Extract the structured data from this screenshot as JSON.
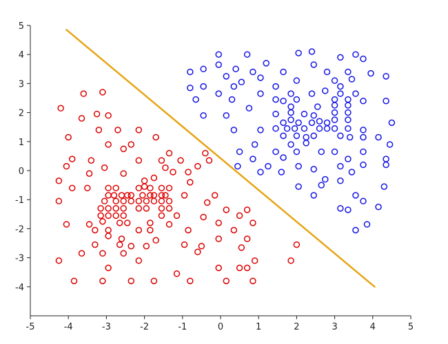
{
  "chart_data": {
    "type": "scatter",
    "xlim": [
      -5,
      5
    ],
    "ylim": [
      -5,
      5
    ],
    "x_ticks": [
      -5,
      -4,
      -3,
      -2,
      -1,
      0,
      1,
      2,
      3,
      4,
      5
    ],
    "y_ticks": [
      -4,
      -3,
      -2,
      -1,
      0,
      1,
      2,
      3,
      4,
      5
    ],
    "grid": false,
    "legend": "none",
    "series": [
      {
        "color": "#dd0000",
        "marker": "open-circle",
        "points": [
          [
            -3.6,
            2.65
          ],
          [
            -3.1,
            2.7
          ],
          [
            -4.2,
            2.15
          ],
          [
            -3.25,
            1.95
          ],
          [
            -2.95,
            1.9
          ],
          [
            -3.65,
            1.8
          ],
          [
            -2.7,
            1.4
          ],
          [
            -3.2,
            1.4
          ],
          [
            -2.15,
            1.4
          ],
          [
            -4.0,
            1.15
          ],
          [
            -2.35,
            0.9
          ],
          [
            -2.95,
            0.9
          ],
          [
            -1.7,
            1.15
          ],
          [
            -2.55,
            0.75
          ],
          [
            -1.35,
            0.6
          ],
          [
            -1.55,
            0.35
          ],
          [
            -3.9,
            0.4
          ],
          [
            -3.4,
            0.35
          ],
          [
            -2.15,
            0.35
          ],
          [
            -1.05,
            0.35
          ],
          [
            -4.05,
            0.15
          ],
          [
            -3.05,
            0.1
          ],
          [
            -1.45,
            0.1
          ],
          [
            -0.6,
            0.15
          ],
          [
            -0.4,
            0.6
          ],
          [
            -0.3,
            0.35
          ],
          [
            -3.45,
            -0.1
          ],
          [
            -2.55,
            -0.1
          ],
          [
            -1.25,
            -0.05
          ],
          [
            -0.85,
            -0.05
          ],
          [
            -1.75,
            -0.25
          ],
          [
            -2.0,
            -0.35
          ],
          [
            -0.8,
            -0.4
          ],
          [
            -4.25,
            -0.35
          ],
          [
            -3.9,
            -0.6
          ],
          [
            -3.5,
            -0.6
          ],
          [
            -2.95,
            -0.6
          ],
          [
            -2.75,
            -0.6
          ],
          [
            -2.15,
            -0.6
          ],
          [
            -2.0,
            -0.55
          ],
          [
            -1.85,
            -0.6
          ],
          [
            -1.55,
            -0.6
          ],
          [
            -1.35,
            -0.6
          ],
          [
            -2.95,
            -0.85
          ],
          [
            -2.8,
            -0.85
          ],
          [
            -2.6,
            -0.85
          ],
          [
            -2.45,
            -0.85
          ],
          [
            -2.35,
            -0.85
          ],
          [
            -2.05,
            -0.85
          ],
          [
            -1.85,
            -0.85
          ],
          [
            -1.75,
            -0.85
          ],
          [
            -1.55,
            -0.85
          ],
          [
            -1.45,
            -0.85
          ],
          [
            -0.95,
            -0.85
          ],
          [
            -0.15,
            -0.85
          ],
          [
            -3.05,
            -1.05
          ],
          [
            -2.75,
            -1.05
          ],
          [
            -2.55,
            -1.05
          ],
          [
            -2.35,
            -1.05
          ],
          [
            -2.15,
            -1.05
          ],
          [
            -1.95,
            -1.05
          ],
          [
            -1.75,
            -1.05
          ],
          [
            -1.55,
            -1.05
          ],
          [
            -1.35,
            -1.05
          ],
          [
            -4.25,
            -1.05
          ],
          [
            -3.15,
            -1.3
          ],
          [
            -2.95,
            -1.3
          ],
          [
            -2.75,
            -1.3
          ],
          [
            -2.55,
            -1.3
          ],
          [
            -2.15,
            -1.3
          ],
          [
            -1.95,
            -1.3
          ],
          [
            -1.55,
            -1.3
          ],
          [
            -1.35,
            -1.3
          ],
          [
            -0.35,
            -1.1
          ],
          [
            0.15,
            -1.35
          ],
          [
            0.7,
            -1.35
          ],
          [
            -3.15,
            -1.55
          ],
          [
            -2.95,
            -1.55
          ],
          [
            -2.75,
            -1.55
          ],
          [
            -2.55,
            -1.55
          ],
          [
            -1.55,
            -1.55
          ],
          [
            -1.15,
            -1.55
          ],
          [
            -0.45,
            -1.6
          ],
          [
            0.5,
            -1.55
          ],
          [
            -3.1,
            -1.75
          ],
          [
            -2.65,
            -1.8
          ],
          [
            -2.45,
            -1.8
          ],
          [
            -1.85,
            -1.8
          ],
          [
            -1.35,
            -1.85
          ],
          [
            -3.45,
            -1.85
          ],
          [
            -4.05,
            -1.85
          ],
          [
            -0.05,
            -1.8
          ],
          [
            0.85,
            -1.8
          ],
          [
            -3.3,
            -2.05
          ],
          [
            -2.95,
            -2.05
          ],
          [
            -2.15,
            -2.05
          ],
          [
            -1.85,
            -2.05
          ],
          [
            -0.85,
            -2.05
          ],
          [
            0.35,
            -2.05
          ],
          [
            -2.95,
            -2.25
          ],
          [
            -2.6,
            -2.35
          ],
          [
            -1.7,
            -2.4
          ],
          [
            -0.05,
            -2.35
          ],
          [
            0.7,
            -2.35
          ],
          [
            -3.3,
            -2.55
          ],
          [
            -2.65,
            -2.55
          ],
          [
            -2.35,
            -2.6
          ],
          [
            -1.95,
            -2.6
          ],
          [
            -0.95,
            -2.55
          ],
          [
            -0.5,
            -2.6
          ],
          [
            0.55,
            -2.65
          ],
          [
            2.0,
            -2.55
          ],
          [
            -3.65,
            -2.85
          ],
          [
            -3.1,
            -2.85
          ],
          [
            -2.55,
            -2.85
          ],
          [
            -0.6,
            -2.8
          ],
          [
            -4.25,
            -3.1
          ],
          [
            -2.15,
            -3.1
          ],
          [
            0.9,
            -3.1
          ],
          [
            1.85,
            -3.1
          ],
          [
            -2.95,
            -3.35
          ],
          [
            -0.05,
            -3.35
          ],
          [
            0.5,
            -3.35
          ],
          [
            0.7,
            -3.35
          ],
          [
            -1.15,
            -3.55
          ],
          [
            -3.85,
            -3.8
          ],
          [
            -3.1,
            -3.8
          ],
          [
            -2.35,
            -3.8
          ],
          [
            -1.75,
            -3.8
          ],
          [
            -0.8,
            -3.8
          ],
          [
            0.15,
            -3.8
          ],
          [
            0.85,
            -3.8
          ]
        ]
      },
      {
        "color": "#1414e6",
        "marker": "open-circle",
        "points": [
          [
            -0.05,
            4.0
          ],
          [
            0.7,
            4.0
          ],
          [
            2.05,
            4.05
          ],
          [
            2.4,
            4.1
          ],
          [
            3.15,
            3.9
          ],
          [
            3.55,
            4.0
          ],
          [
            3.75,
            3.85
          ],
          [
            -0.05,
            3.65
          ],
          [
            -0.45,
            3.5
          ],
          [
            0.4,
            3.5
          ],
          [
            1.2,
            3.7
          ],
          [
            2.45,
            3.65
          ],
          [
            -0.8,
            3.4
          ],
          [
            0.15,
            3.25
          ],
          [
            0.85,
            3.4
          ],
          [
            1.65,
            3.4
          ],
          [
            2.8,
            3.4
          ],
          [
            3.35,
            3.4
          ],
          [
            3.95,
            3.35
          ],
          [
            4.35,
            3.25
          ],
          [
            0.55,
            3.05
          ],
          [
            1.05,
            3.2
          ],
          [
            2.0,
            3.1
          ],
          [
            3.0,
            3.1
          ],
          [
            3.45,
            3.15
          ],
          [
            -0.8,
            2.85
          ],
          [
            -0.45,
            2.9
          ],
          [
            0.35,
            2.9
          ],
          [
            1.45,
            2.9
          ],
          [
            3.15,
            2.9
          ],
          [
            2.75,
            2.75
          ],
          [
            1.05,
            2.65
          ],
          [
            -0.05,
            2.65
          ],
          [
            1.85,
            2.65
          ],
          [
            2.4,
            2.65
          ],
          [
            3.15,
            2.65
          ],
          [
            3.55,
            2.65
          ],
          [
            -0.65,
            2.45
          ],
          [
            0.3,
            2.45
          ],
          [
            1.45,
            2.45
          ],
          [
            1.65,
            2.4
          ],
          [
            2.0,
            2.45
          ],
          [
            3.0,
            2.45
          ],
          [
            3.35,
            2.45
          ],
          [
            3.75,
            2.4
          ],
          [
            4.35,
            2.4
          ],
          [
            0.75,
            2.15
          ],
          [
            1.85,
            2.2
          ],
          [
            2.55,
            2.2
          ],
          [
            3.0,
            2.25
          ],
          [
            3.35,
            2.25
          ],
          [
            -0.45,
            1.9
          ],
          [
            0.15,
            1.9
          ],
          [
            1.45,
            1.95
          ],
          [
            1.85,
            2.0
          ],
          [
            2.2,
            1.95
          ],
          [
            2.45,
            1.9
          ],
          [
            3.0,
            2.0
          ],
          [
            3.35,
            2.0
          ],
          [
            1.65,
            1.65
          ],
          [
            1.85,
            1.75
          ],
          [
            2.05,
            1.65
          ],
          [
            2.4,
            1.65
          ],
          [
            2.6,
            1.7
          ],
          [
            2.8,
            1.65
          ],
          [
            3.0,
            1.75
          ],
          [
            3.35,
            1.75
          ],
          [
            4.5,
            1.65
          ],
          [
            1.45,
            1.45
          ],
          [
            1.75,
            1.45
          ],
          [
            1.95,
            1.45
          ],
          [
            2.2,
            1.45
          ],
          [
            2.6,
            1.45
          ],
          [
            2.8,
            1.45
          ],
          [
            3.0,
            1.45
          ],
          [
            3.35,
            1.45
          ],
          [
            1.05,
            1.4
          ],
          [
            0.35,
            1.4
          ],
          [
            3.75,
            1.4
          ],
          [
            1.65,
            1.2
          ],
          [
            2.0,
            1.2
          ],
          [
            2.25,
            1.15
          ],
          [
            2.45,
            1.2
          ],
          [
            3.15,
            1.2
          ],
          [
            3.4,
            1.15
          ],
          [
            3.75,
            1.15
          ],
          [
            4.15,
            1.15
          ],
          [
            0.9,
            0.9
          ],
          [
            1.85,
            0.9
          ],
          [
            2.25,
            0.95
          ],
          [
            4.45,
            0.9
          ],
          [
            0.5,
            0.65
          ],
          [
            1.45,
            0.65
          ],
          [
            2.0,
            0.65
          ],
          [
            2.65,
            0.65
          ],
          [
            3.0,
            0.65
          ],
          [
            3.75,
            0.65
          ],
          [
            1.65,
            0.45
          ],
          [
            0.85,
            0.4
          ],
          [
            3.35,
            0.4
          ],
          [
            4.35,
            0.4
          ],
          [
            0.45,
            0.15
          ],
          [
            1.25,
            0.15
          ],
          [
            2.05,
            0.15
          ],
          [
            3.15,
            0.15
          ],
          [
            3.75,
            0.2
          ],
          [
            4.35,
            0.2
          ],
          [
            1.05,
            -0.05
          ],
          [
            1.6,
            -0.05
          ],
          [
            2.45,
            0.05
          ],
          [
            3.45,
            -0.05
          ],
          [
            2.75,
            -0.3
          ],
          [
            2.65,
            -0.5
          ],
          [
            3.15,
            -0.35
          ],
          [
            2.05,
            -0.55
          ],
          [
            4.3,
            -0.55
          ],
          [
            2.45,
            -0.85
          ],
          [
            3.55,
            -0.85
          ],
          [
            3.75,
            -1.05
          ],
          [
            3.15,
            -1.3
          ],
          [
            3.35,
            -1.35
          ],
          [
            4.15,
            -1.25
          ],
          [
            3.55,
            -2.05
          ],
          [
            3.85,
            -1.85
          ]
        ]
      }
    ],
    "decision_line": {
      "color": "#e6a414",
      "from": [
        -4.05,
        4.85
      ],
      "to": [
        4.05,
        -4.0
      ]
    }
  }
}
